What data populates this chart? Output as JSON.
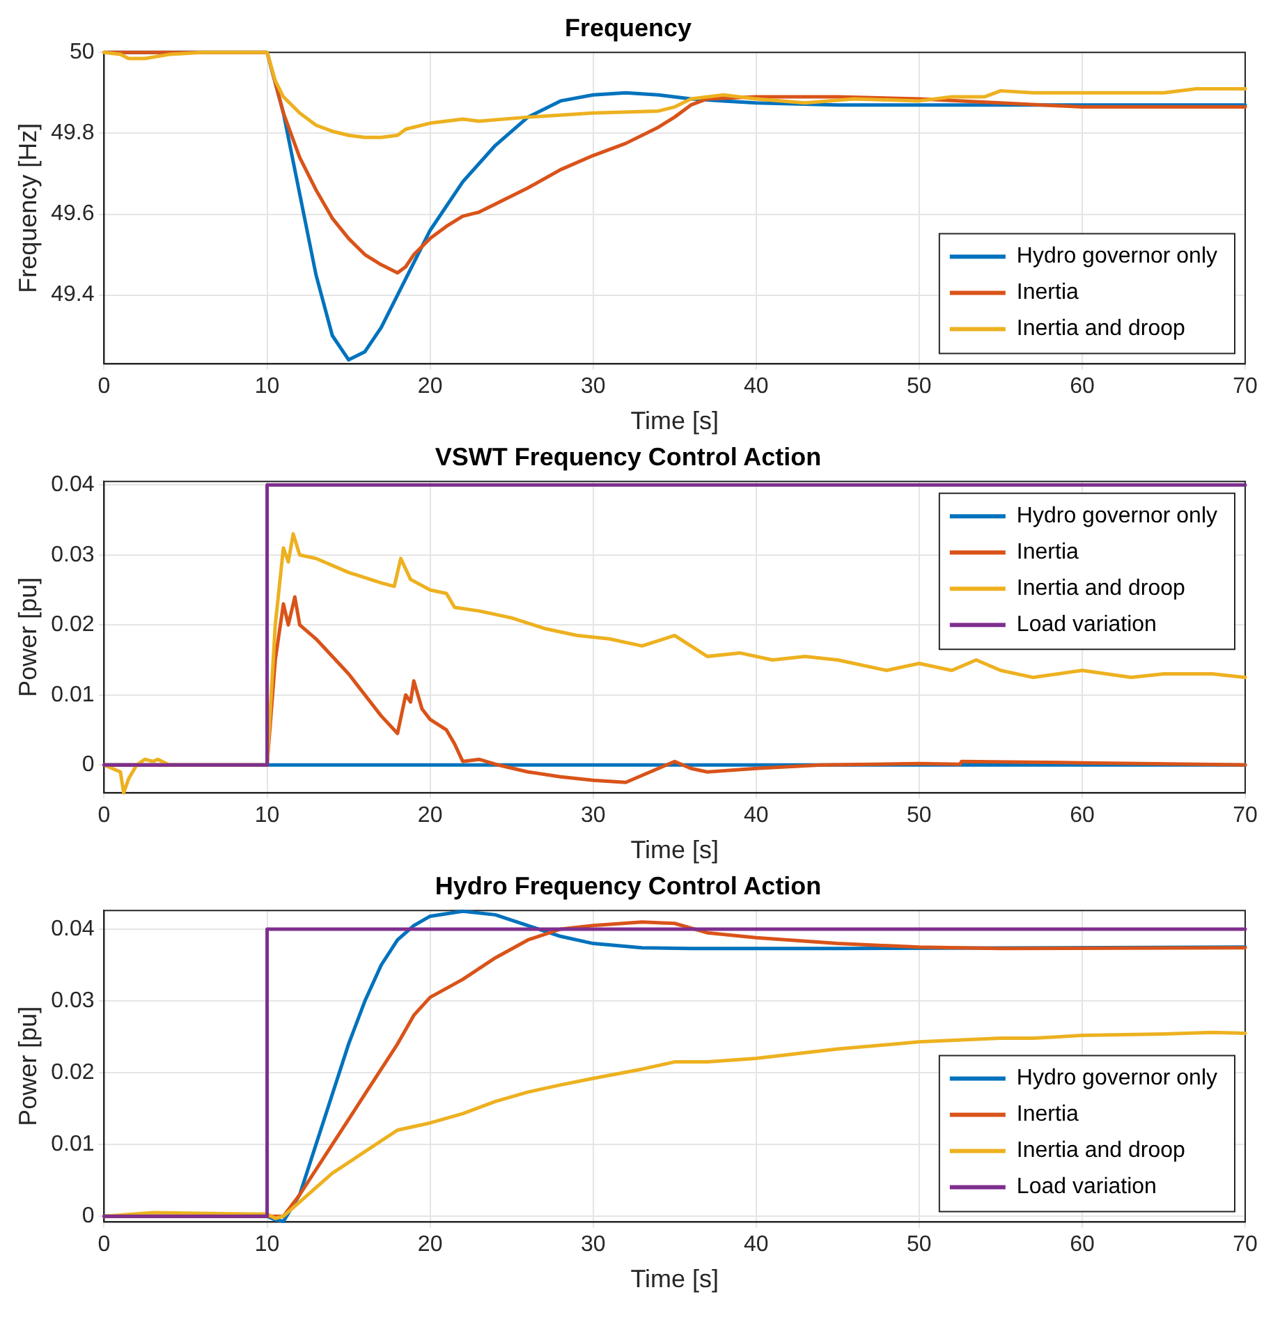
{
  "chart_data": [
    {
      "type": "line",
      "title": "Frequency",
      "xlabel": "Time [s]",
      "ylabel": "Frequency [Hz]",
      "xlim": [
        0,
        70
      ],
      "xticks": [
        0,
        10,
        20,
        30,
        40,
        50,
        60,
        70
      ],
      "ylim": [
        49.23,
        50
      ],
      "yticks": [
        49.4,
        49.6,
        49.8,
        50
      ],
      "grid": true,
      "legend": "bottom right",
      "marker": "none",
      "line_style": "solid",
      "series": [
        {
          "name": "Hydro governor only",
          "color": "#0072bd",
          "x": [
            0,
            10,
            11,
            12,
            13,
            14,
            15,
            16,
            17,
            18,
            19,
            20,
            22,
            24,
            26,
            28,
            30,
            32,
            34,
            36,
            38,
            40,
            45,
            50,
            60,
            70
          ],
          "values": [
            50,
            50,
            49.85,
            49.65,
            49.45,
            49.3,
            49.24,
            49.26,
            49.32,
            49.4,
            49.48,
            49.56,
            49.68,
            49.77,
            49.84,
            49.88,
            49.895,
            49.9,
            49.895,
            49.885,
            49.88,
            49.875,
            49.87,
            49.87,
            49.87,
            49.87
          ]
        },
        {
          "name": "Inertia",
          "color": "#d95319",
          "x": [
            0,
            10,
            11,
            12,
            13,
            14,
            15,
            16,
            17,
            18,
            18.5,
            19,
            20,
            21,
            22,
            23,
            24,
            26,
            28,
            30,
            32,
            34,
            35,
            36,
            37,
            40,
            45,
            50,
            55,
            60,
            70
          ],
          "values": [
            50,
            50,
            49.85,
            49.74,
            49.66,
            49.59,
            49.54,
            49.5,
            49.475,
            49.455,
            49.47,
            49.5,
            49.54,
            49.57,
            49.595,
            49.605,
            49.625,
            49.665,
            49.71,
            49.745,
            49.775,
            49.815,
            49.84,
            49.87,
            49.885,
            49.89,
            49.89,
            49.885,
            49.875,
            49.865,
            49.865
          ]
        },
        {
          "name": "Inertia and droop",
          "color": "#edb120",
          "x": [
            0,
            1,
            1.5,
            2.5,
            4,
            6,
            10,
            10.5,
            11,
            12,
            13,
            14,
            15,
            16,
            17,
            18,
            18.5,
            20,
            22,
            23,
            26,
            30,
            34,
            35,
            36,
            38,
            40,
            43,
            46,
            50,
            52,
            54,
            55,
            57,
            60,
            65,
            67,
            70
          ],
          "values": [
            50,
            49.995,
            49.985,
            49.985,
            49.995,
            50,
            50,
            49.93,
            49.89,
            49.85,
            49.82,
            49.805,
            49.795,
            49.79,
            49.79,
            49.795,
            49.81,
            49.825,
            49.835,
            49.83,
            49.84,
            49.85,
            49.855,
            49.865,
            49.885,
            49.895,
            49.885,
            49.875,
            49.885,
            49.88,
            49.89,
            49.89,
            49.905,
            49.9,
            49.9,
            49.9,
            49.91,
            49.91
          ]
        }
      ]
    },
    {
      "type": "line",
      "title": "VSWT Frequency Control Action",
      "xlabel": "Time [s]",
      "ylabel": "Power [pu]",
      "xlim": [
        0,
        70
      ],
      "xticks": [
        0,
        10,
        20,
        30,
        40,
        50,
        60,
        70
      ],
      "ylim": [
        -0.004,
        0.0405
      ],
      "yticks": [
        0,
        0.01,
        0.02,
        0.03,
        0.04
      ],
      "grid": true,
      "legend": "top right",
      "marker": "none",
      "line_style": "solid",
      "series": [
        {
          "name": "Hydro governor only",
          "color": "#0072bd",
          "x": [
            0,
            70
          ],
          "values": [
            0,
            0
          ]
        },
        {
          "name": "Inertia",
          "color": "#d95319",
          "x": [
            0,
            10,
            10.5,
            11,
            11.3,
            11.7,
            12,
            13,
            15,
            17,
            18,
            18.5,
            18.8,
            19,
            19.5,
            20,
            21,
            21.5,
            22,
            23,
            24,
            26,
            28,
            30,
            32,
            33,
            35,
            36,
            37,
            40,
            44,
            50,
            52.5,
            52.6,
            60,
            70
          ],
          "values": [
            0,
            0,
            0.015,
            0.023,
            0.02,
            0.024,
            0.02,
            0.018,
            0.013,
            0.007,
            0.0045,
            0.01,
            0.009,
            0.012,
            0.008,
            0.0065,
            0.005,
            0.003,
            0.0005,
            0.0008,
            0.0001,
            -0.001,
            -0.0017,
            -0.0022,
            -0.0025,
            -0.0015,
            0.0005,
            -0.0005,
            -0.001,
            -0.0005,
            0,
            0.0002,
            0.0001,
            0.0005,
            0.0003,
            0
          ]
        },
        {
          "name": "Inertia and droop",
          "color": "#edb120",
          "x": [
            0,
            1,
            1.2,
            1.5,
            2,
            2.5,
            3,
            3.3,
            4,
            10,
            10.5,
            11,
            11.3,
            11.6,
            12,
            13,
            15,
            17,
            17.8,
            18.2,
            18.8,
            20,
            21,
            21.5,
            23,
            25,
            27,
            29,
            31,
            33,
            35,
            36,
            37,
            39,
            41,
            43,
            45,
            48,
            50,
            52,
            53.5,
            55,
            57,
            60,
            63,
            65,
            68,
            70
          ],
          "values": [
            0,
            -0.001,
            -0.004,
            -0.002,
            0,
            0.0008,
            0.0005,
            0.0008,
            0,
            0,
            0.02,
            0.031,
            0.029,
            0.033,
            0.03,
            0.0295,
            0.0275,
            0.026,
            0.0255,
            0.0295,
            0.0265,
            0.025,
            0.0245,
            0.0225,
            0.022,
            0.021,
            0.0195,
            0.0185,
            0.018,
            0.017,
            0.0185,
            0.017,
            0.0155,
            0.016,
            0.015,
            0.0155,
            0.015,
            0.0135,
            0.0145,
            0.0135,
            0.015,
            0.0135,
            0.0125,
            0.0135,
            0.0125,
            0.013,
            0.013,
            0.0125
          ]
        },
        {
          "name": "Load variation",
          "color": "#7e2f8e",
          "x": [
            0,
            10,
            10,
            70
          ],
          "values": [
            0,
            0,
            0.04,
            0.04
          ]
        }
      ]
    },
    {
      "type": "line",
      "title": "Hydro Frequency Control Action",
      "xlabel": "Time [s]",
      "ylabel": "Power [pu]",
      "xlim": [
        0,
        70
      ],
      "xticks": [
        0,
        10,
        20,
        30,
        40,
        50,
        60,
        70
      ],
      "ylim": [
        -0.0008,
        0.0426
      ],
      "yticks": [
        0,
        0.01,
        0.02,
        0.03,
        0.04
      ],
      "grid": true,
      "legend": "bottom right",
      "marker": "none",
      "line_style": "solid",
      "series": [
        {
          "name": "Hydro governor only",
          "color": "#0072bd",
          "x": [
            0,
            10,
            10.5,
            11,
            12,
            13,
            14,
            15,
            16,
            17,
            18,
            19,
            20,
            22,
            24,
            26,
            28,
            30,
            33,
            36,
            45,
            70
          ],
          "values": [
            0,
            0,
            -0.0005,
            -0.0007,
            0.003,
            0.01,
            0.017,
            0.024,
            0.03,
            0.035,
            0.0385,
            0.0405,
            0.0418,
            0.0425,
            0.042,
            0.0405,
            0.039,
            0.038,
            0.0374,
            0.0373,
            0.0373,
            0.0375
          ]
        },
        {
          "name": "Inertia",
          "color": "#d95319",
          "x": [
            0,
            10,
            11,
            12,
            14,
            16,
            18,
            19,
            20,
            22,
            24,
            26,
            28,
            30,
            33,
            35,
            37,
            40,
            45,
            50,
            55,
            70
          ],
          "values": [
            0,
            0,
            0,
            0.003,
            0.01,
            0.017,
            0.024,
            0.028,
            0.0305,
            0.033,
            0.036,
            0.0385,
            0.04,
            0.0405,
            0.041,
            0.0408,
            0.0395,
            0.0388,
            0.038,
            0.0375,
            0.0373,
            0.0374
          ]
        },
        {
          "name": "Inertia and droop",
          "color": "#edb120",
          "x": [
            0,
            3,
            9,
            10,
            10.5,
            11,
            12,
            14,
            16,
            18,
            20,
            22,
            24,
            26,
            28,
            30,
            33,
            35,
            37,
            40,
            45,
            50,
            55,
            57,
            60,
            65,
            68,
            70
          ],
          "values": [
            0,
            0.0005,
            0.0003,
            0.0003,
            -0.0003,
            0,
            0.002,
            0.006,
            0.009,
            0.012,
            0.013,
            0.0143,
            0.016,
            0.0173,
            0.0183,
            0.0192,
            0.0205,
            0.0215,
            0.0215,
            0.022,
            0.0233,
            0.0243,
            0.0248,
            0.0248,
            0.0252,
            0.0254,
            0.0256,
            0.0255
          ]
        },
        {
          "name": "Load variation",
          "color": "#7e2f8e",
          "x": [
            0,
            10,
            10,
            70
          ],
          "values": [
            0,
            0,
            0.04,
            0.04
          ]
        }
      ]
    }
  ]
}
